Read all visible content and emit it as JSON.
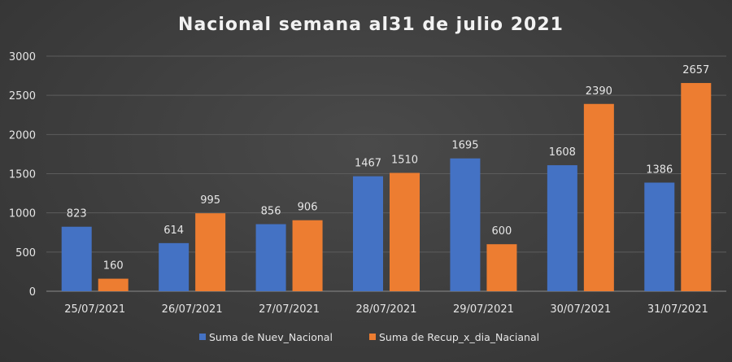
{
  "chart_data": {
    "type": "bar",
    "title": "Nacional semana al31 de julio 2021",
    "categories": [
      "25/07/2021",
      "26/07/2021",
      "27/07/2021",
      "28/07/2021",
      "29/07/2021",
      "30/07/2021",
      "31/07/2021"
    ],
    "series": [
      {
        "name": "Suma de Nuev_Nacional",
        "color": "#4472C4",
        "values": [
          823,
          614,
          856,
          1467,
          1695,
          1608,
          1386
        ]
      },
      {
        "name": "Suma de Recup_x_dia_Nacianal",
        "color": "#ED7D31",
        "values": [
          160,
          995,
          906,
          1510,
          600,
          2390,
          2657
        ]
      }
    ],
    "ylim": [
      0,
      3000
    ],
    "yticks": [
      0,
      500,
      1000,
      1500,
      2000,
      2500,
      3000
    ],
    "grid": true,
    "legend": "bottom",
    "xlabel": "",
    "ylabel": ""
  }
}
